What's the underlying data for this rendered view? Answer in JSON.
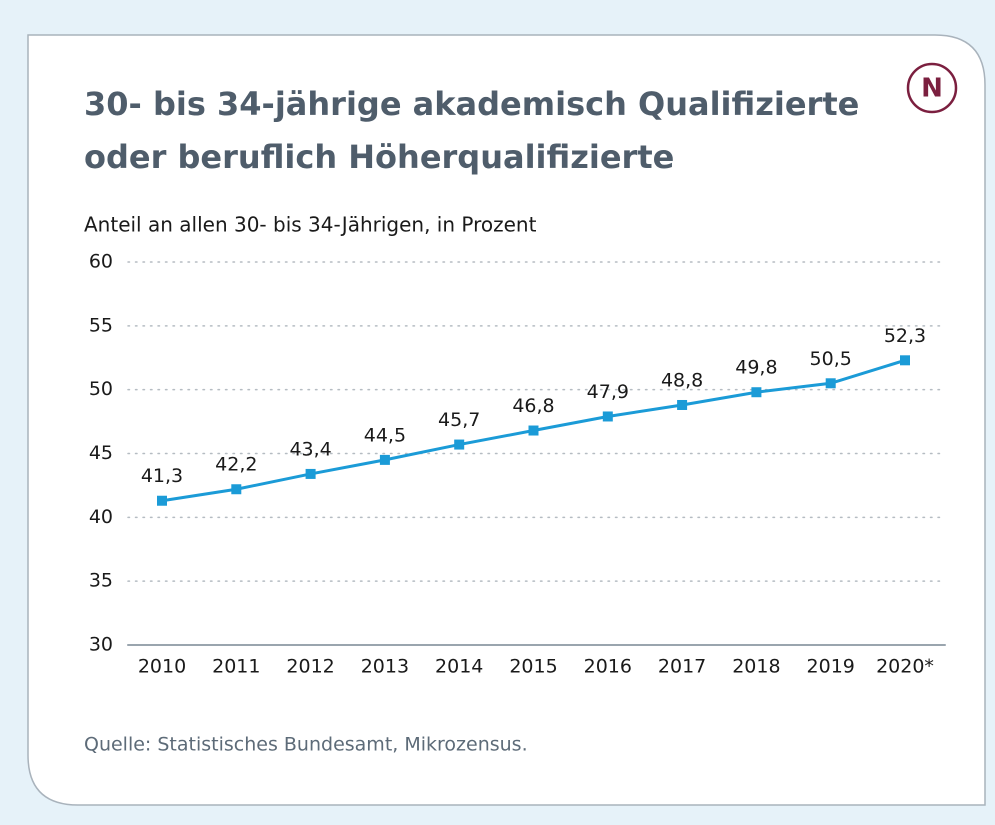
{
  "chart_data": {
    "type": "line",
    "title": "30- bis 34-jährige akademisch Qualifizierte",
    "title_line2": "oder beruflich Höherqualifizierte",
    "subtitle": "Anteil an allen 30- bis 34-Jährigen, in Prozent",
    "badge": "N",
    "source": "Quelle: Statistisches Bundesamt, Mikrozensus.",
    "categories": [
      "2010",
      "2011",
      "2012",
      "2013",
      "2014",
      "2015",
      "2016",
      "2017",
      "2018",
      "2019",
      "2020*"
    ],
    "values": [
      41.3,
      42.2,
      43.4,
      44.5,
      45.7,
      46.8,
      47.9,
      48.8,
      49.8,
      50.5,
      52.3
    ],
    "value_labels": [
      "41,3",
      "42,2",
      "43,4",
      "44,5",
      "45,7",
      "46,8",
      "47,9",
      "48,8",
      "49,8",
      "50,5",
      "52,3"
    ],
    "color": "#1b9bd7",
    "ylim": [
      30,
      60
    ],
    "yticks": [
      30,
      35,
      40,
      45,
      50,
      55,
      60
    ],
    "grid": true
  }
}
